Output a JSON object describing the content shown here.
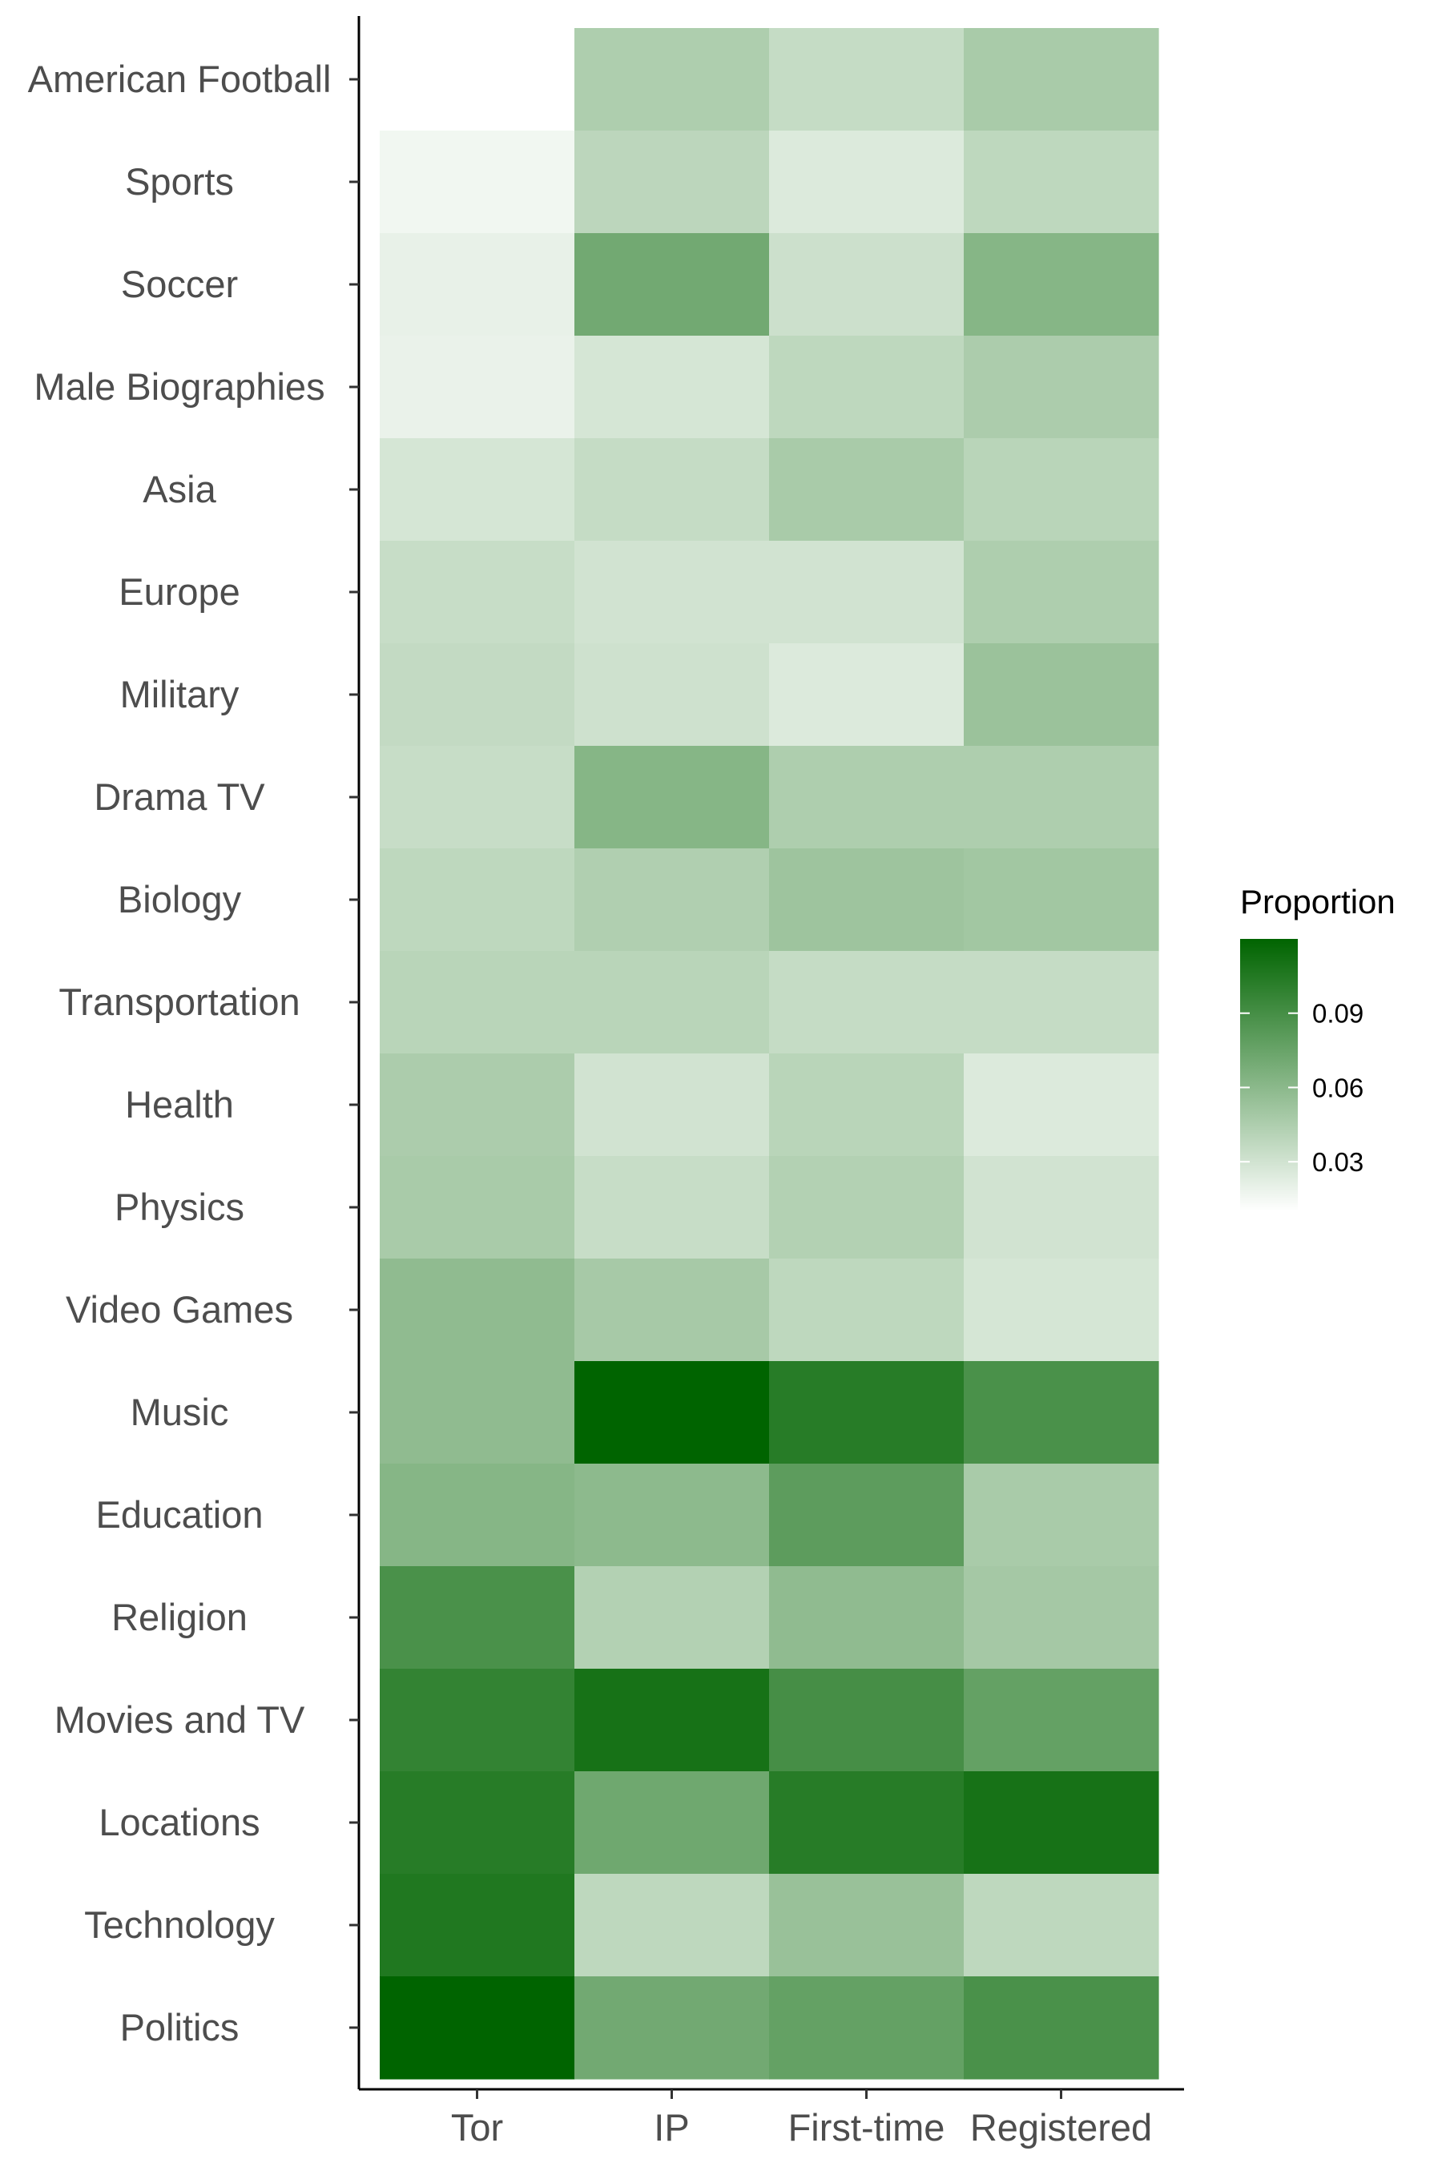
{
  "chart_data": {
    "type": "heatmap",
    "x_categories": [
      "Tor",
      "IP",
      "First-time",
      "Registered"
    ],
    "y_categories": [
      "American Football",
      "Sports",
      "Soccer",
      "Male Biographies",
      "Asia",
      "Europe",
      "Military",
      "Drama TV",
      "Biology",
      "Transportation",
      "Health",
      "Physics",
      "Video Games",
      "Music",
      "Education",
      "Religion",
      "Movies and TV",
      "Locations",
      "Technology",
      "Politics"
    ],
    "values": [
      [
        0.01,
        0.045,
        0.035,
        0.047
      ],
      [
        0.016,
        0.039,
        0.025,
        0.038
      ],
      [
        0.02,
        0.071,
        0.032,
        0.062
      ],
      [
        0.019,
        0.028,
        0.038,
        0.046
      ],
      [
        0.028,
        0.035,
        0.047,
        0.04
      ],
      [
        0.034,
        0.03,
        0.03,
        0.045
      ],
      [
        0.036,
        0.031,
        0.025,
        0.053
      ],
      [
        0.034,
        0.062,
        0.045,
        0.045
      ],
      [
        0.038,
        0.044,
        0.052,
        0.05
      ],
      [
        0.04,
        0.04,
        0.035,
        0.035
      ],
      [
        0.046,
        0.03,
        0.04,
        0.025
      ],
      [
        0.047,
        0.034,
        0.043,
        0.03
      ],
      [
        0.058,
        0.048,
        0.038,
        0.028
      ],
      [
        0.058,
        0.12,
        0.103,
        0.088
      ],
      [
        0.062,
        0.059,
        0.08,
        0.047
      ],
      [
        0.088,
        0.043,
        0.058,
        0.049
      ],
      [
        0.098,
        0.11,
        0.09,
        0.077
      ],
      [
        0.103,
        0.072,
        0.103,
        0.11
      ],
      [
        0.106,
        0.038,
        0.054,
        0.038
      ],
      [
        0.12,
        0.071,
        0.077,
        0.088
      ]
    ],
    "legend": {
      "title": "Proportion",
      "ticks": [
        {
          "value": 0.09,
          "label": "0.09"
        },
        {
          "value": 0.06,
          "label": "0.06"
        },
        {
          "value": 0.03,
          "label": "0.03"
        }
      ],
      "range": [
        0.01,
        0.12
      ],
      "placement": "right"
    },
    "color_low": "#ffffff",
    "color_high": "#006400",
    "xlabel": "",
    "ylabel": "",
    "title": ""
  }
}
